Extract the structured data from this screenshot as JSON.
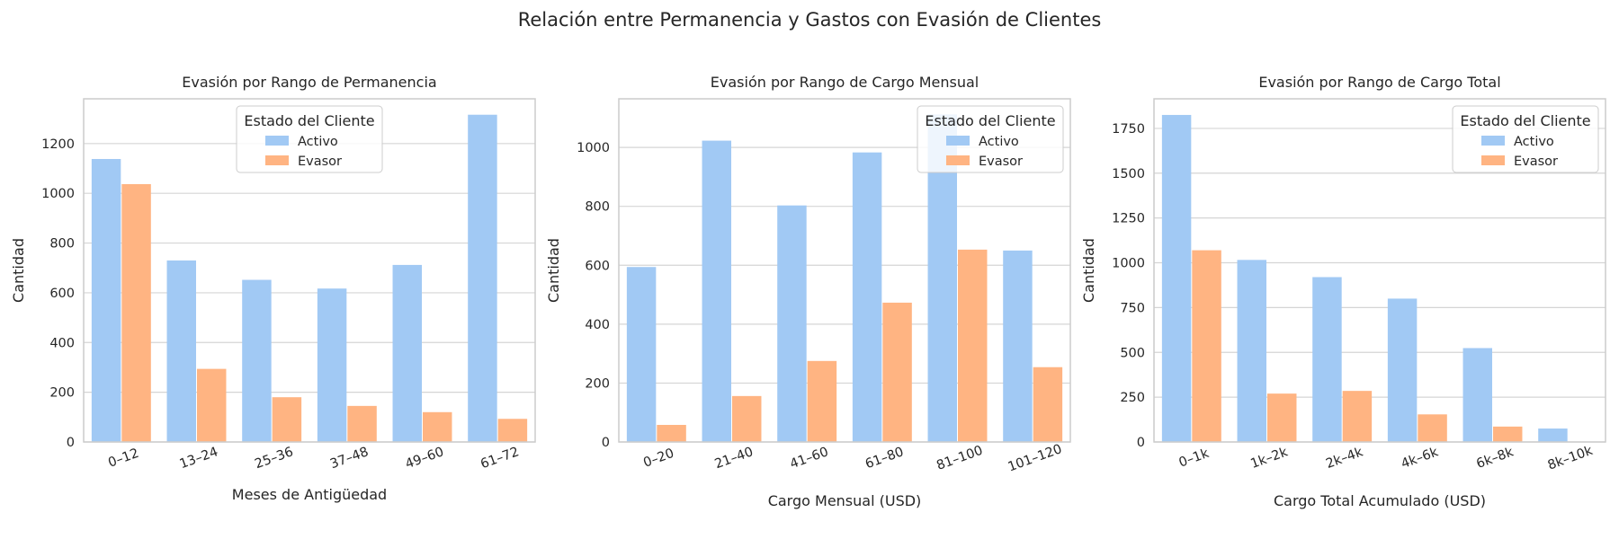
{
  "figure_title": "Relación entre Permanencia y Gastos con Evasión de Clientes",
  "colors": {
    "Activo": "#a1c9f4",
    "Evasor": "#ffb482",
    "grid": "#d5d5d5",
    "frame": "#cccccc"
  },
  "chart_data": [
    {
      "type": "bar",
      "title": "Evasión por Rango de Permanencia",
      "xlabel": "Meses de Antigüedad",
      "ylabel": "Cantidad",
      "categories": [
        "0–12",
        "13–24",
        "25–36",
        "37–48",
        "49–60",
        "61–72"
      ],
      "series": [
        {
          "name": "Activo",
          "values": [
            1138,
            730,
            652,
            617,
            712,
            1316
          ]
        },
        {
          "name": "Evasor",
          "values": [
            1037,
            294,
            180,
            145,
            120,
            93
          ]
        }
      ],
      "ylim": [
        0,
        1380
      ],
      "yticks": [
        0,
        200,
        400,
        600,
        800,
        1000,
        1200
      ],
      "grid": true,
      "legend": {
        "title": "Estado del Cliente",
        "placement": "upper-center"
      }
    },
    {
      "type": "bar",
      "title": "Evasión por Rango de Cargo Mensual",
      "xlabel": "Cargo Mensual (USD)",
      "ylabel": "Cantidad",
      "categories": [
        "0–20",
        "21–40",
        "41–60",
        "61–80",
        "81–100",
        "101–120"
      ],
      "series": [
        {
          "name": "Activo",
          "values": [
            594,
            1023,
            803,
            983,
            1112,
            650
          ]
        },
        {
          "name": "Evasor",
          "values": [
            58,
            156,
            275,
            473,
            653,
            254
          ]
        }
      ],
      "ylim": [
        0,
        1165
      ],
      "yticks": [
        0,
        200,
        400,
        600,
        800,
        1000
      ],
      "grid": true,
      "legend": {
        "title": "Estado del Cliente",
        "placement": "upper-right"
      }
    },
    {
      "type": "bar",
      "title": "Evasión por Rango de Cargo Total",
      "xlabel": "Cargo Total Acumulado (USD)",
      "ylabel": "Cantidad",
      "categories": [
        "0–1k",
        "1k–2k",
        "2k–4k",
        "4k–6k",
        "6k–8k",
        "8k–10k"
      ],
      "series": [
        {
          "name": "Activo",
          "values": [
            1825,
            1016,
            920,
            800,
            524,
            75
          ]
        },
        {
          "name": "Evasor",
          "values": [
            1070,
            270,
            285,
            154,
            86,
            0
          ]
        }
      ],
      "ylim": [
        0,
        1915
      ],
      "yticks": [
        0,
        250,
        500,
        750,
        1000,
        1250,
        1500,
        1750
      ],
      "grid": true,
      "legend": {
        "title": "Estado del Cliente",
        "placement": "upper-right"
      }
    }
  ]
}
